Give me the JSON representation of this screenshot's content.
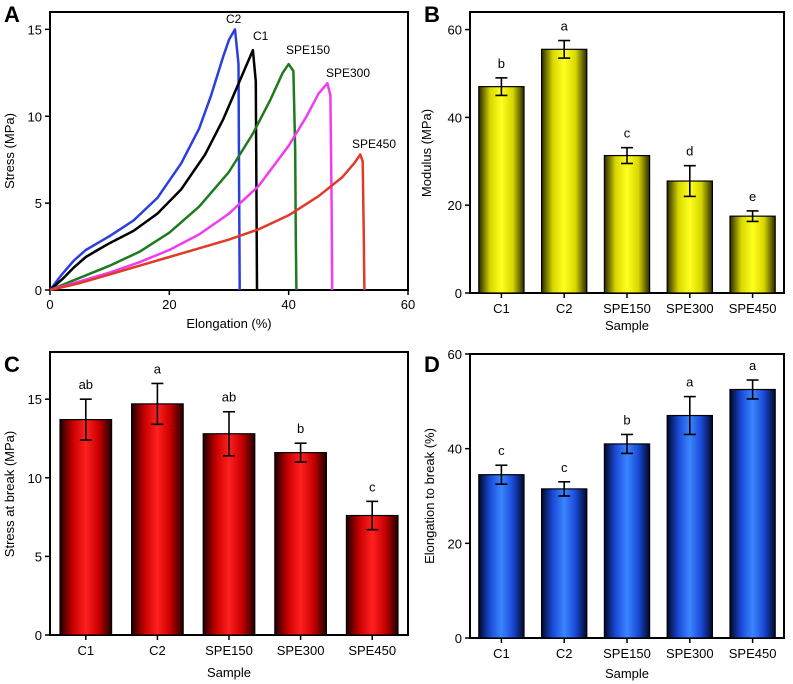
{
  "colors": {
    "blue_curve": "#2b3ee0",
    "black_curve": "#000000",
    "green_curve": "#1f7a1f",
    "magenta_curve": "#f03cf0",
    "red_curve": "#e03a2a",
    "yellow_bar": "#f4f400",
    "red_bar": "#ff1a1a",
    "blue_bar": "#2a6cff"
  },
  "chart_data": [
    {
      "panel": "A",
      "type": "line",
      "title": "",
      "xlabel": "Elongation (%)",
      "ylabel": "Stress (MPa)",
      "xlim": [
        0,
        60
      ],
      "ylim": [
        0,
        16
      ],
      "xticks": [
        "0",
        "20",
        "40",
        "60"
      ],
      "yticks": [
        "0",
        "5",
        "10",
        "15"
      ],
      "series": [
        {
          "name": "C2",
          "color": "blue_curve",
          "x": [
            0,
            2,
            4,
            6,
            8,
            10,
            14,
            18,
            22,
            25,
            27,
            29,
            30,
            31,
            31.6,
            31.7,
            31.8
          ],
          "y": [
            0,
            0.9,
            1.7,
            2.3,
            2.7,
            3.1,
            4.0,
            5.3,
            7.3,
            9.3,
            11.2,
            13.4,
            14.4,
            15.0,
            13.0,
            6.0,
            0
          ]
        },
        {
          "name": "C1",
          "color": "black_curve",
          "x": [
            0,
            2,
            4,
            6,
            8,
            10,
            14,
            18,
            22,
            26,
            29,
            31,
            33,
            34,
            34.5,
            34.6,
            34.7
          ],
          "y": [
            0,
            0.6,
            1.3,
            1.9,
            2.3,
            2.7,
            3.4,
            4.4,
            5.8,
            7.8,
            9.8,
            11.4,
            13.0,
            13.8,
            12.0,
            6.0,
            0
          ]
        },
        {
          "name": "SPE150",
          "color": "green_curve",
          "x": [
            0,
            5,
            10,
            15,
            20,
            25,
            30,
            34,
            37,
            39,
            40,
            40.8,
            41.1,
            41.2,
            41.3
          ],
          "y": [
            0,
            0.7,
            1.4,
            2.2,
            3.3,
            4.8,
            6.8,
            9.0,
            11.0,
            12.5,
            13.0,
            12.6,
            8.0,
            3.0,
            0
          ]
        },
        {
          "name": "SPE300",
          "color": "magenta_curve",
          "x": [
            0,
            5,
            10,
            15,
            20,
            25,
            30,
            35,
            40,
            43,
            45,
            46.5,
            47.0,
            47.2,
            47.3
          ],
          "y": [
            0,
            0.5,
            1.0,
            1.6,
            2.3,
            3.2,
            4.4,
            6.0,
            8.3,
            10.0,
            11.3,
            11.9,
            11.2,
            5.0,
            0
          ]
        },
        {
          "name": "SPE450",
          "color": "red_curve",
          "x": [
            0,
            5,
            10,
            15,
            20,
            25,
            30,
            35,
            40,
            45,
            49,
            51,
            52,
            52.4,
            52.6,
            52.7
          ],
          "y": [
            0,
            0.4,
            0.9,
            1.4,
            1.9,
            2.4,
            2.9,
            3.5,
            4.3,
            5.4,
            6.5,
            7.3,
            7.8,
            7.4,
            3.0,
            0
          ]
        }
      ],
      "curve_labels": [
        "C2",
        "C1",
        "SPE150",
        "SPE300",
        "SPE450"
      ]
    },
    {
      "panel": "B",
      "type": "bar",
      "title": "",
      "xlabel": "Sample",
      "ylabel": "Modulus (MPa)",
      "ylim": [
        0,
        64
      ],
      "yticks": [
        "0",
        "20",
        "40",
        "60"
      ],
      "categories": [
        "C1",
        "C2",
        "SPE150",
        "SPE300",
        "SPE450"
      ],
      "values": [
        47.0,
        55.5,
        31.3,
        25.5,
        17.5
      ],
      "errors": [
        2.0,
        2.0,
        1.8,
        3.5,
        1.2
      ],
      "significance": [
        "b",
        "a",
        "c",
        "d",
        "e"
      ],
      "color": "yellow_bar"
    },
    {
      "panel": "C",
      "type": "bar",
      "title": "",
      "xlabel": "Sample",
      "ylabel": "Stress at break (MPa)",
      "ylim": [
        0,
        18
      ],
      "yticks": [
        "0",
        "5",
        "10",
        "15"
      ],
      "categories": [
        "C1",
        "C2",
        "SPE150",
        "SPE300",
        "SPE450"
      ],
      "values": [
        13.7,
        14.7,
        12.8,
        11.6,
        7.6
      ],
      "errors": [
        1.3,
        1.3,
        1.4,
        0.6,
        0.9
      ],
      "significance": [
        "ab",
        "a",
        "ab",
        "b",
        "c"
      ],
      "color": "red_bar"
    },
    {
      "panel": "D",
      "type": "bar",
      "title": "",
      "xlabel": "Sample",
      "ylabel": "Elongation to break (%)",
      "ylim": [
        0,
        60
      ],
      "yticks": [
        "0",
        "20",
        "40",
        "60"
      ],
      "categories": [
        "C1",
        "C2",
        "SPE150",
        "SPE300",
        "SPE450"
      ],
      "values": [
        34.5,
        31.5,
        41.0,
        47.0,
        52.5
      ],
      "errors": [
        2.0,
        1.5,
        2.0,
        4.0,
        2.0
      ],
      "significance": [
        "c",
        "c",
        "b",
        "a",
        "a"
      ],
      "color": "blue_bar"
    }
  ]
}
